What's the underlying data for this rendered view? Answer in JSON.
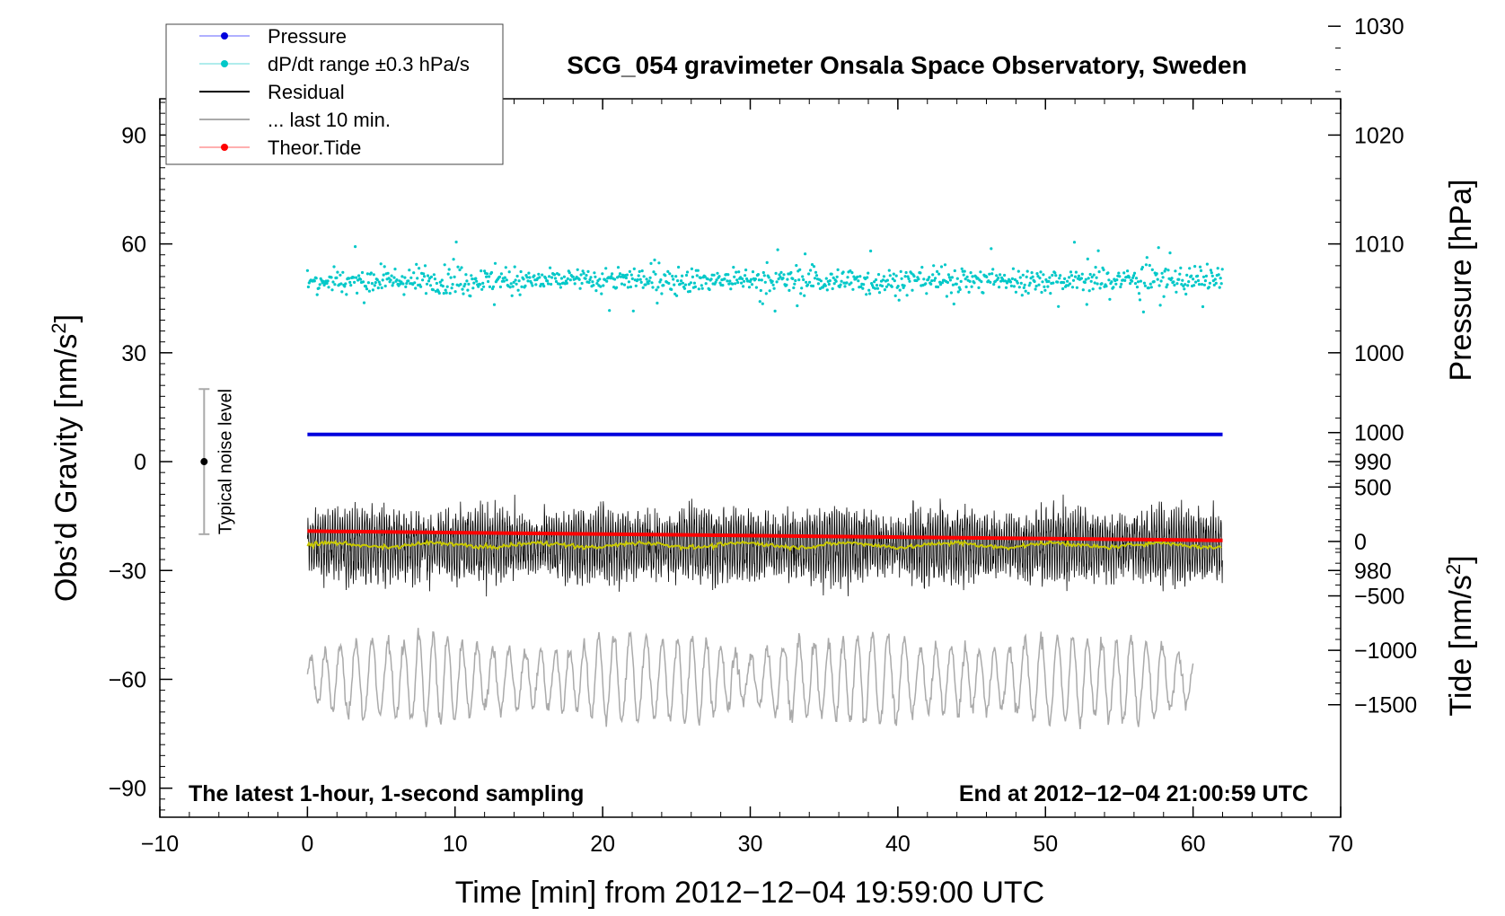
{
  "chart_data": {
    "type": "line",
    "title": "SCG_054 gravimeter Onsala Space Observatory, Sweden",
    "xlabel": "Time [min] from 2012−12−04 19:59:00 UTC",
    "ylabel_main": "Obs’d Gravity [nm/s",
    "ylabel_main_sup": "2",
    "ylabel_main_close": "]",
    "ylabel_pressure": "Pressure [hPa]",
    "ylabel_tide": "Tide [nm/s",
    "ylabel_tide_sup": "2",
    "ylabel_tide_close": "]",
    "xlim": [
      -10,
      70
    ],
    "ylim": [
      -98,
      100
    ],
    "x_ticks": [
      "−10",
      "0",
      "10",
      "20",
      "30",
      "40",
      "50",
      "60",
      "70"
    ],
    "y_ticks": [
      "90",
      "60",
      "30",
      "0",
      "−30",
      "−60",
      "−90"
    ],
    "pressure_axis": {
      "range": [
        1030,
        980
      ],
      "ticks": [
        "1030",
        "1020",
        "1010",
        "1000",
        "990",
        "980"
      ]
    },
    "tide_axis": {
      "range": [
        1000,
        -1500
      ],
      "ticks": [
        "1000",
        "500",
        "0",
        "−500",
        "−1000",
        "−1500"
      ]
    },
    "annotations": {
      "bottom_left": "The latest 1-hour, 1-second sampling",
      "bottom_right": "End at 2012−12−04 21:00:59 UTC",
      "noise_label": "Typical noise level"
    },
    "noise_bar": {
      "x": -7,
      "center": 0,
      "low": -20,
      "high": 20
    },
    "legend": [
      {
        "label": "Pressure",
        "color": "#0000dd",
        "line": "#8080ff",
        "marker": true
      },
      {
        "label": "dP/dt range ±0.3 hPa/s",
        "color": "#00c8c8",
        "line": "#80e0e0",
        "marker": true
      },
      {
        "label": "Residual",
        "color": "#000000",
        "line": "#000000",
        "marker": false
      },
      {
        "label": "... last 10 min.",
        "color": "#aaaaaa",
        "line": "#aaaaaa",
        "marker": false
      },
      {
        "label": "Theor.Tide",
        "color": "#ff0000",
        "line": "#ff8080",
        "marker": true
      }
    ],
    "series": [
      {
        "name": "Pressure",
        "color": "#0000dd",
        "x": [
          0,
          62
        ],
        "pressure_hPa": [
          992.5,
          992.5
        ]
      },
      {
        "name": "dP/dt range ±0.3 hPa/s",
        "color": "#00c8c8",
        "x_range": [
          0,
          62
        ],
        "center": 50,
        "spread": 3
      },
      {
        "name": "Residual",
        "color": "#000000",
        "x_range": [
          0,
          62
        ],
        "center": -23,
        "amplitude": 10
      },
      {
        "name": "Residual (smoothed)",
        "color": "#c8c800",
        "x_range": [
          0,
          62
        ],
        "center": -23
      },
      {
        "name": "... last 10 min.",
        "color": "#aaaaaa",
        "x_range": [
          0,
          60
        ],
        "center": -60,
        "amplitude": 10
      },
      {
        "name": "Theor.Tide",
        "color": "#ff0000",
        "x": [
          0,
          62
        ],
        "tide_nm_s2": [
          95,
          10
        ]
      }
    ]
  }
}
